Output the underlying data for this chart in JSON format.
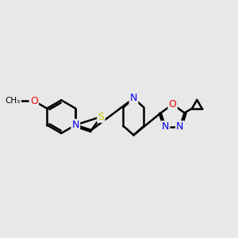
{
  "bg_color": "#e8e8e8",
  "bond_color": "#000000",
  "bond_width": 1.8,
  "atom_colors": {
    "N": "#0000ee",
    "O": "#ee0000",
    "S": "#cccc00",
    "C": "#000000"
  },
  "figsize": [
    3.0,
    3.0
  ],
  "dpi": 100
}
